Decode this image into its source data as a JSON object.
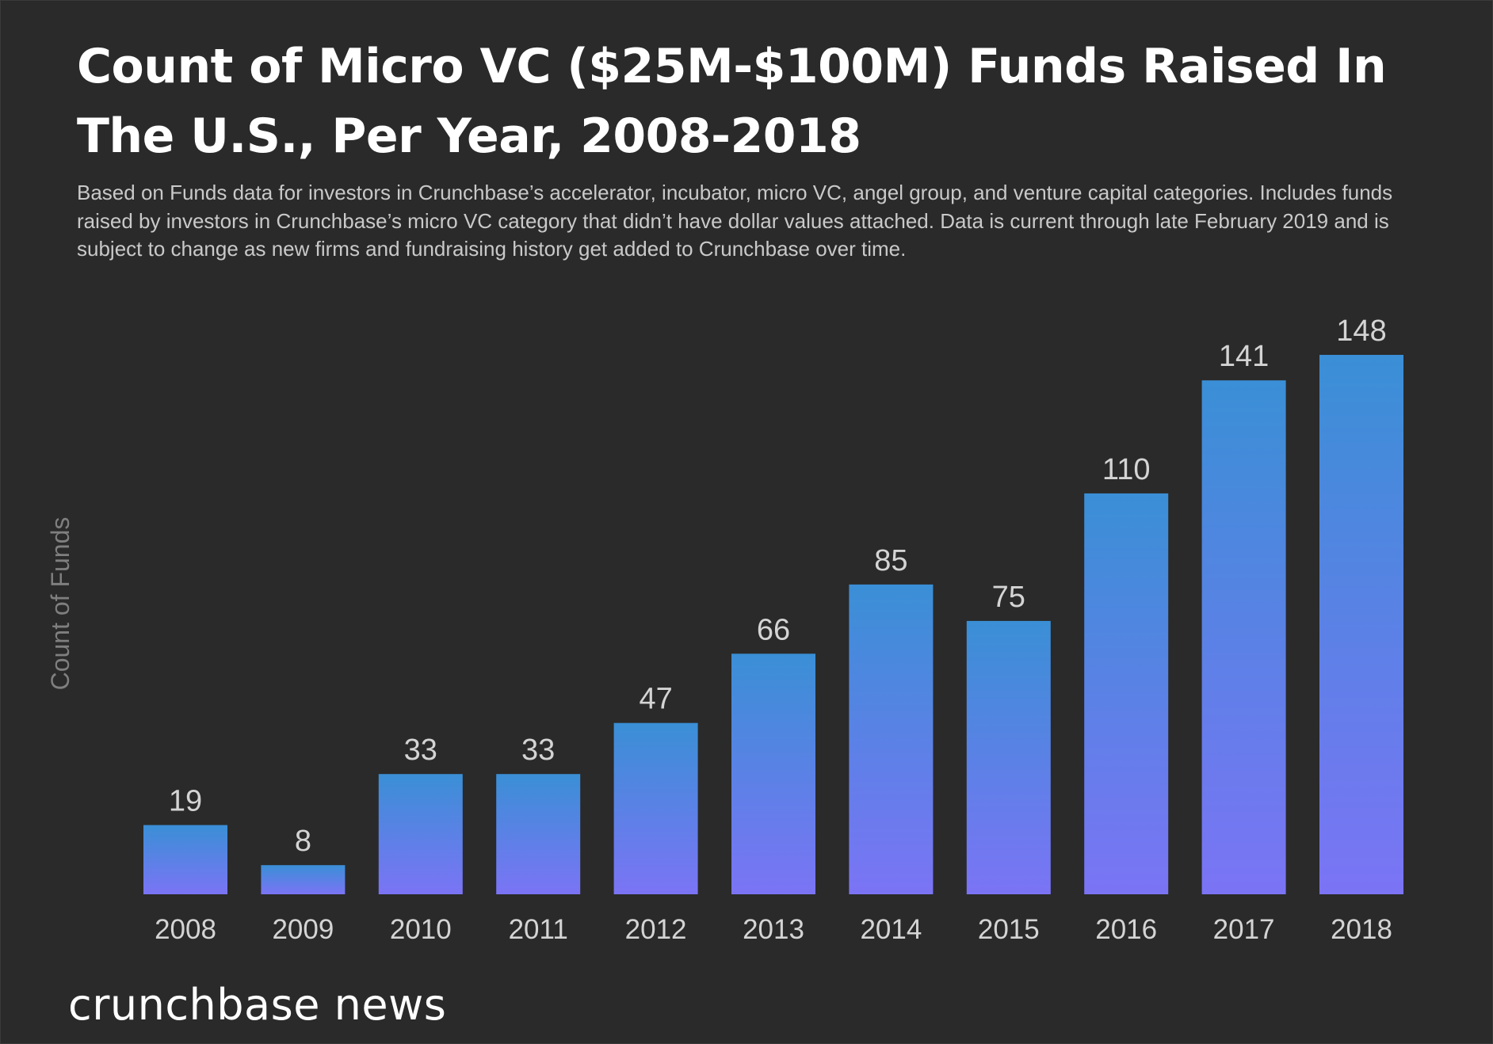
{
  "chart_data": {
    "type": "bar",
    "title": "Count of Micro VC ($25M-$100M) Funds Raised In The U.S., Per Year, 2008-2018",
    "subtitle": "Based on Funds data for investors in Crunchbase’s accelerator, incubator, micro VC, angel group, and venture capital categories. Includes funds raised by investors in Crunchbase’s micro VC category that didn’t have dollar values attached. Data is current through late February 2019 and is subject to change as new firms and fundraising history get added to Crunchbase over time.",
    "xlabel": "",
    "ylabel": "Count of Funds",
    "categories": [
      "2008",
      "2009",
      "2010",
      "2011",
      "2012",
      "2013",
      "2014",
      "2015",
      "2016",
      "2017",
      "2018"
    ],
    "values": [
      19,
      8,
      33,
      33,
      47,
      66,
      85,
      75,
      110,
      141,
      148
    ],
    "ylim": [
      0,
      148
    ],
    "grid": false,
    "legend": "none",
    "colors": {
      "bar_top": "#3a8fd6",
      "bar_bottom": "#7b74f5",
      "label_text": "#d4d4d4",
      "axis_text": "#7f7f7f",
      "background": "#2a2a2a"
    }
  },
  "branding": {
    "logo_text": "crunchbase news"
  }
}
